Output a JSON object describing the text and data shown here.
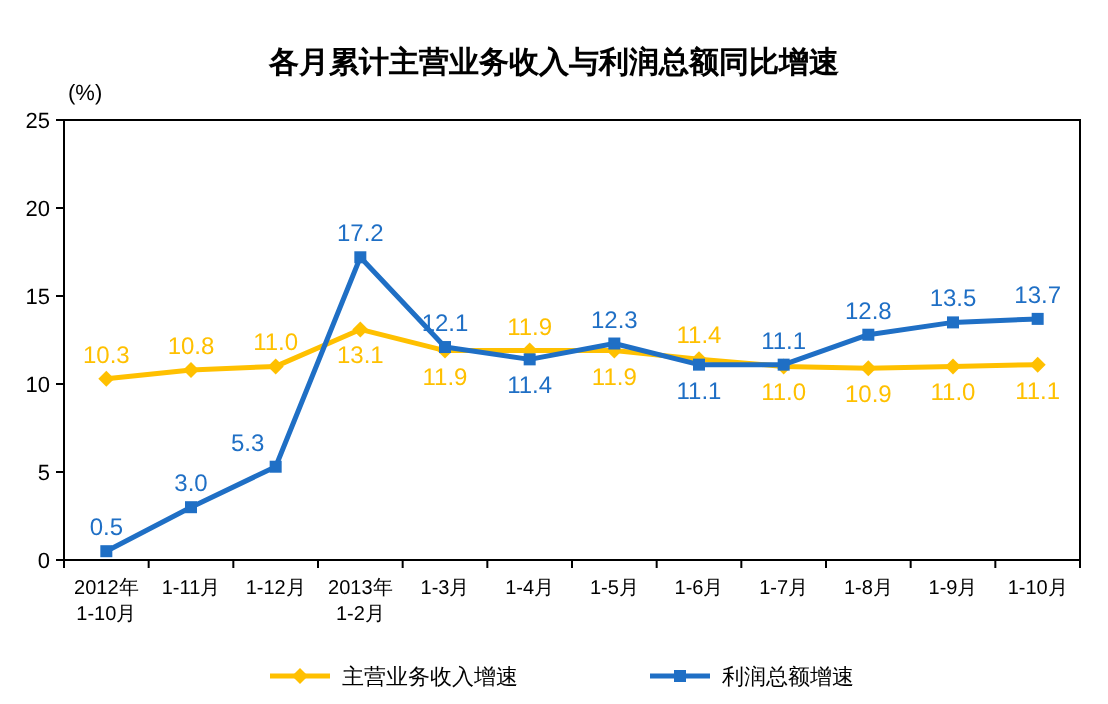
{
  "chart_data": {
    "type": "line",
    "title": "各月累计主营业务收入与利润总额同比增速",
    "ylabel": "(%)",
    "categories": [
      "2012年\n1-10月",
      "1-11月",
      "1-12月",
      "2013年\n1-2月",
      "1-3月",
      "1-4月",
      "1-5月",
      "1-6月",
      "1-7月",
      "1-8月",
      "1-9月",
      "1-10月"
    ],
    "series": [
      {
        "name": "主营业务收入增速",
        "color": "#ffc000",
        "marker": "diamond",
        "values": [
          10.3,
          10.8,
          11.0,
          13.1,
          11.9,
          11.9,
          11.9,
          11.4,
          11.0,
          10.9,
          11.0,
          11.1
        ],
        "value_labels": [
          "10.3",
          "10.8",
          "11.0",
          "13.1",
          "11.9",
          "11.9",
          "11.9",
          "11.4",
          "11.0",
          "10.9",
          "11.0",
          "11.1"
        ]
      },
      {
        "name": "利润总额增速",
        "color": "#1f6fc5",
        "marker": "square",
        "values": [
          0.5,
          3.0,
          5.3,
          17.2,
          12.1,
          11.4,
          12.3,
          11.1,
          11.1,
          12.8,
          13.5,
          13.7
        ],
        "value_labels": [
          "0.5",
          "3.0",
          "5.3",
          "17.2",
          "12.1",
          "11.4",
          "12.3",
          "11.1",
          "11.1",
          "12.8",
          "13.5",
          "13.7"
        ]
      }
    ],
    "ylim": [
      0,
      25
    ],
    "yticks": [
      0,
      5,
      10,
      15,
      20,
      25
    ],
    "grid": false,
    "legend": "bottom"
  }
}
